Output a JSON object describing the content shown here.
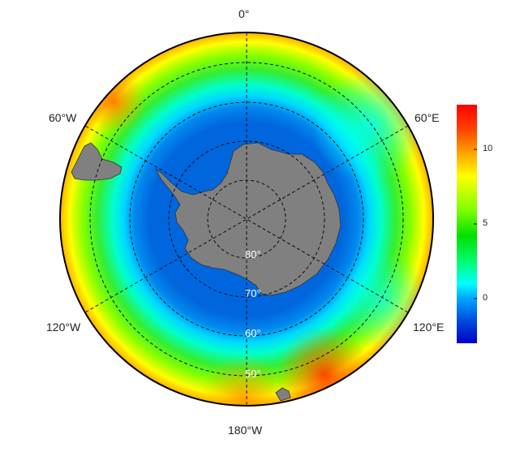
{
  "map": {
    "projection": "south polar stereographic",
    "lon_labels": {
      "top": "0°",
      "upper_right": "60°E",
      "lower_right": "120°E",
      "bottom": "180°W",
      "lower_left": "120°W",
      "upper_left": "60°W"
    },
    "lat_labels": {
      "ring_80": "80°",
      "ring_70": "70°",
      "ring_60": "60°",
      "ring_50": "50°"
    },
    "colors": {
      "land": "#808080",
      "background": "#ffffff",
      "graticule": "#000000",
      "lat_label": "#ffffff"
    }
  },
  "colorbar": {
    "palette": [
      "#0000c8",
      "#0050e0",
      "#00a8ff",
      "#00ffff",
      "#00ff80",
      "#00e000",
      "#80ff00",
      "#ffff00",
      "#ffa000",
      "#ff4000",
      "#ff0000"
    ],
    "range": [
      -3,
      13
    ],
    "ticks": [
      {
        "value": 0,
        "label": "0"
      },
      {
        "value": 5,
        "label": "5"
      },
      {
        "value": 10,
        "label": "10"
      }
    ]
  }
}
